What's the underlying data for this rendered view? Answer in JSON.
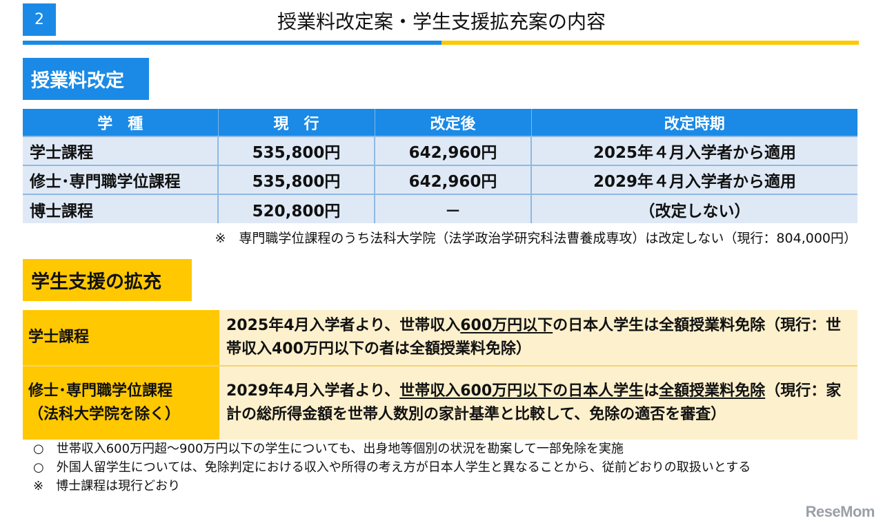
{
  "header": {
    "page_number": "2",
    "title": "授業料改定案・学生支援拡充案の内容"
  },
  "colors": {
    "blue": "#1a8ae6",
    "yellow": "#ffc800",
    "table_row_blue": "#dfe9f6",
    "table_row_cream": "#fdf0cc"
  },
  "fee_section": {
    "label": "授業料改定",
    "columns": [
      "学　種",
      "現　行",
      "改定後",
      "改定時期"
    ],
    "rows": [
      [
        "学士課程",
        "535,800円",
        "642,960円",
        "2025年４月入学者から適用"
      ],
      [
        "修士･専門職学位課程",
        "535,800円",
        "642,960円",
        "2029年４月入学者から適用"
      ],
      [
        "博士課程",
        "520,800円",
        "－",
        "（改定しない）"
      ]
    ],
    "note": "※　専門職学位課程のうち法科大学院（法学政治学研究科法曹養成専攻）は改定しない（現行：804,000円）"
  },
  "support_section": {
    "label": "学生支援の拡充",
    "rows": [
      {
        "category": "学士課程",
        "text": [
          "2025年4月入学者より、世帯収入",
          "600万円以下",
          "の日本人学生は全額授業料免除（現行：世帯収入400万円以下の者は全額授業料免除）"
        ]
      },
      {
        "category": "修士･専門職学位課程",
        "category_sub": "（法科大学院を除く）",
        "text": [
          "2029年4月入学者より、",
          "世帯収入600万円以下の日本人学生",
          "は",
          "全額授業料免除",
          "（現行：家計の総所得金額を世帯人数別の家計基準と比較して、免除の適否を審査）"
        ]
      }
    ]
  },
  "notes": [
    "○　世帯収入600万円超～900万円以下の学生についても、出身地等個別の状況を勘案して一部免除を実施",
    "○　外国人留学生については、免除判定における収入や所得の考え方が日本人学生と異なることから、従前どおりの取扱いとする",
    "※　博士課程は現行どおり"
  ],
  "logo": {
    "text": "ReseMom"
  }
}
